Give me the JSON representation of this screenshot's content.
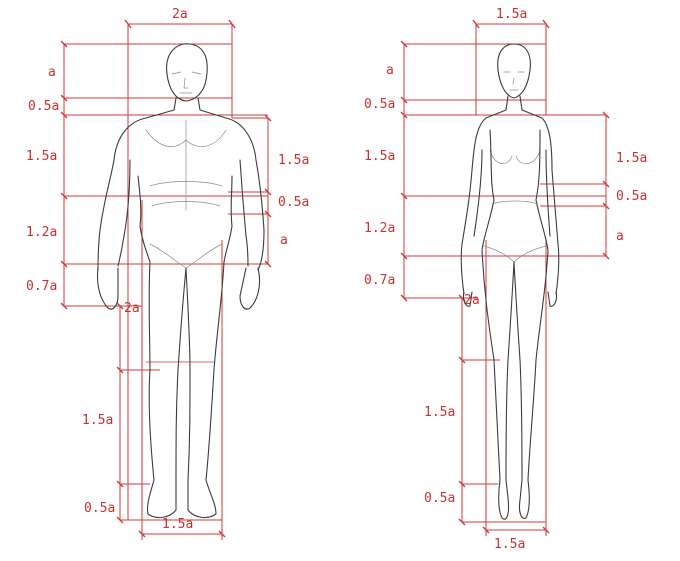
{
  "male": {
    "top_width": "2a",
    "head": "a",
    "neck": "0.5a",
    "torso": "1.5a",
    "waist": "1.2a",
    "hip": "0.7a",
    "right_torso": "1.5a",
    "right_waist": "0.5a",
    "right_hip": "a",
    "leg_upper": "2a",
    "leg_lower": "1.5a",
    "foot": "0.5a",
    "bottom_width": "1.5a"
  },
  "female": {
    "top_width": "1.5a",
    "head": "a",
    "neck": "0.5a",
    "torso": "1.5a",
    "waist": "1.2a",
    "hip": "0.7a",
    "right_torso": "1.5a",
    "right_waist": "0.5a",
    "right_hip": "a",
    "leg_upper": "2a",
    "leg_lower": "1.5a",
    "foot": "0.5a",
    "bottom_width": "1.5a"
  },
  "colors": {
    "guide": "#d0393d",
    "label": "#c8312f",
    "sketch": "#3c3c3c"
  }
}
